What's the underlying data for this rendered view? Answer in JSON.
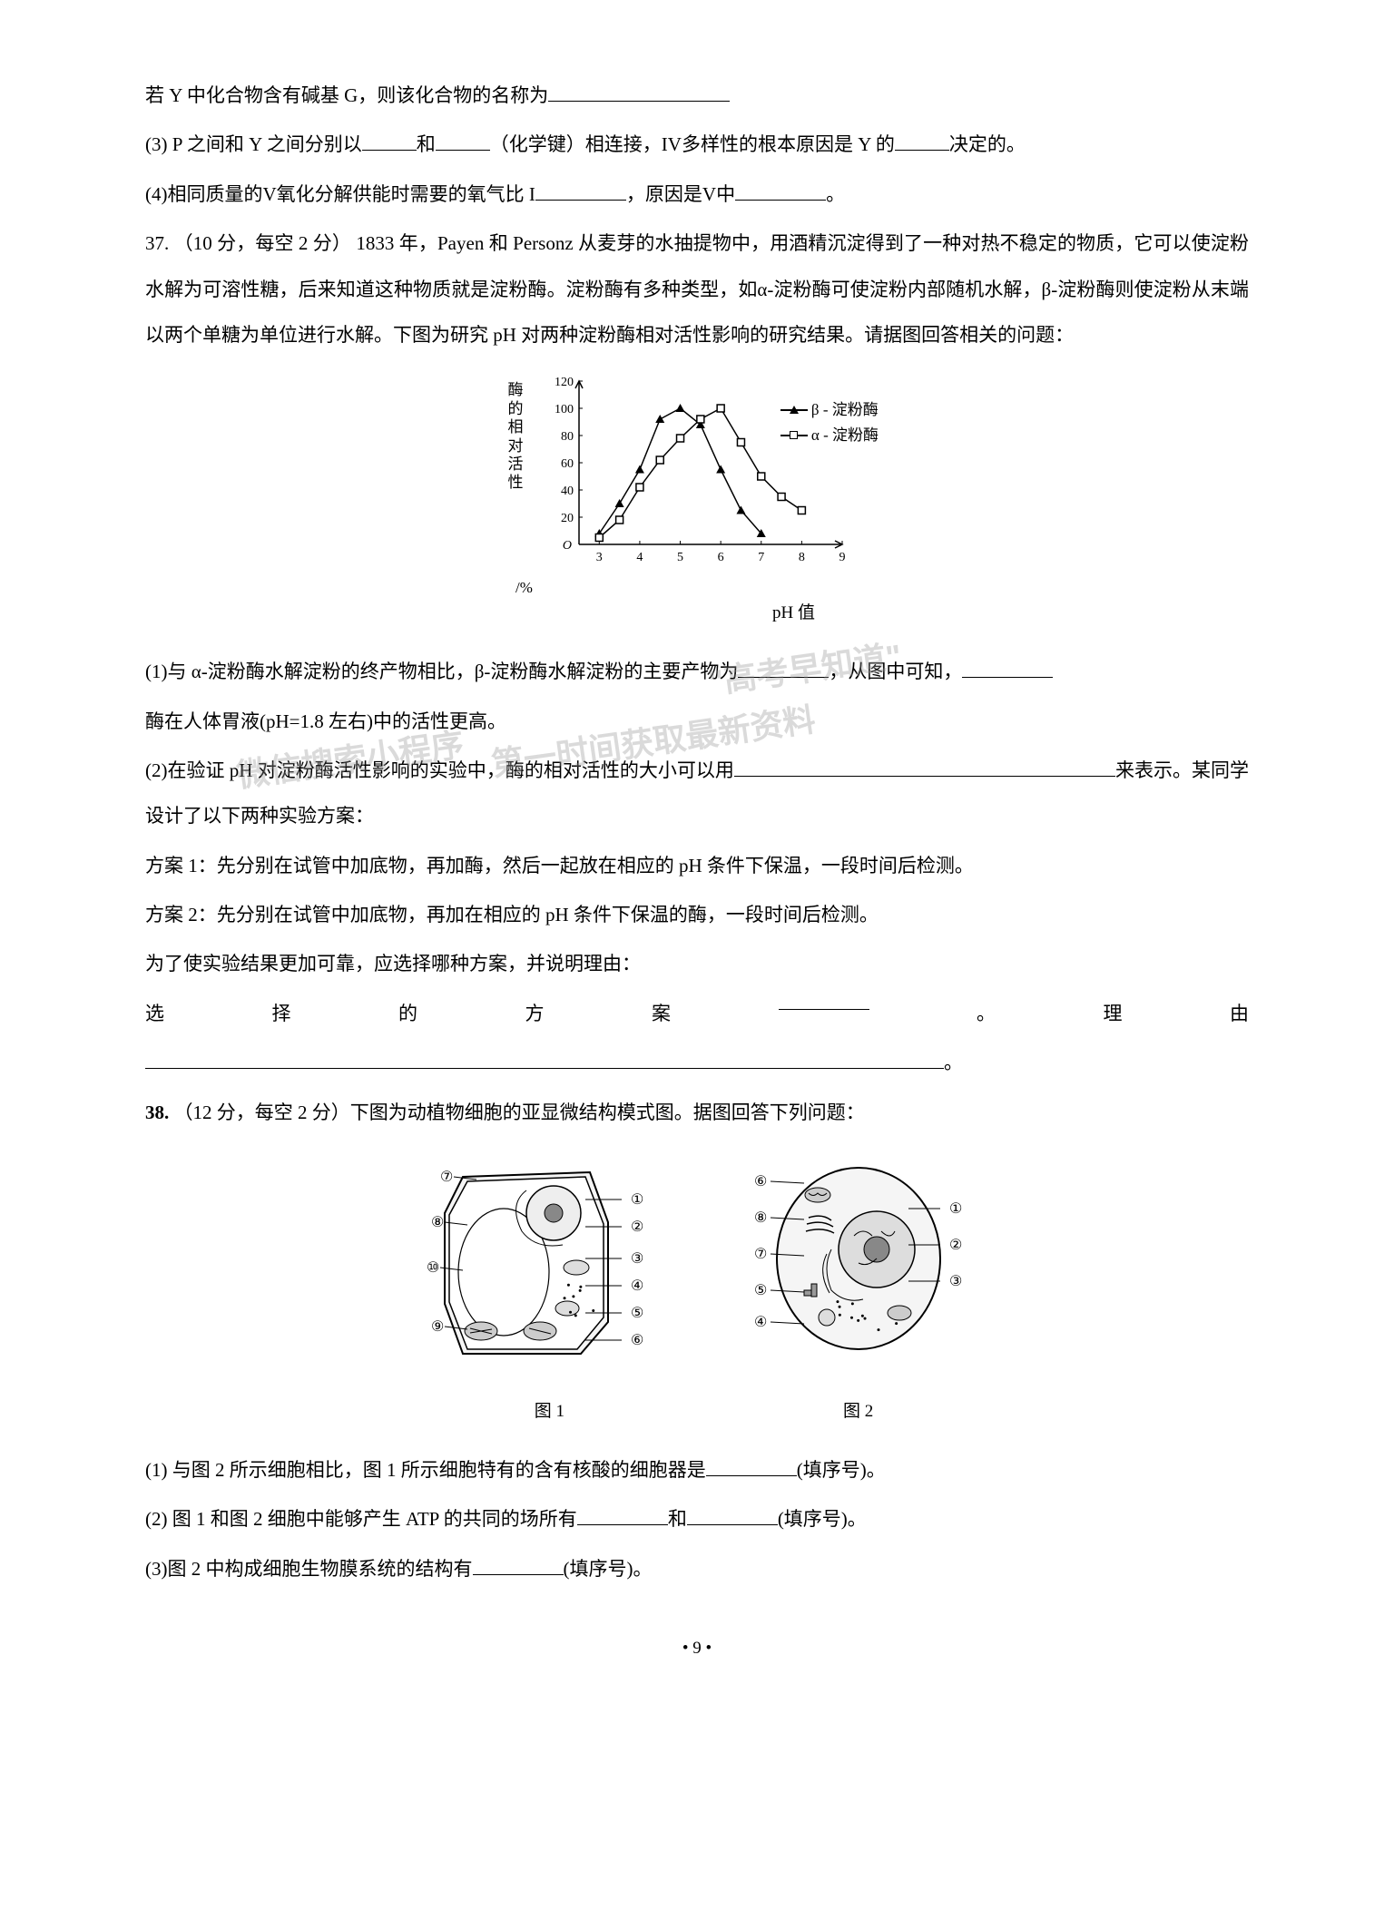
{
  "q36": {
    "line1": "若 Y 中化合物含有碱基 G，则该化合物的名称为",
    "line2a": "(3) P 之间和 Y 之间分别以",
    "line2b": "和",
    "line2c": "（化学键）相连接，IV多样性的根本原因是 Y 的",
    "line2d": "决定的。",
    "line3a": "(4)相同质量的V氧化分解供能时需要的氧气比 I",
    "line3b": "，原因是V中",
    "line3c": "。"
  },
  "q37": {
    "header": "37.   （10 分，每空 2 分）  1833 年，Payen 和 Personz 从麦芽的水抽提物中，用酒精沉淀得到了一种对热不稳定的物质，它可以使淀粉水解为可溶性糖，后来知道这种物质就是淀粉酶。淀粉酶有多种类型，如α-淀粉酶可使淀粉内部随机水解，β-淀粉酶则使淀粉从末端以两个单糖为单位进行水解。下图为研究 pH 对两种淀粉酶相对活性影响的研究结果。请据图回答相关的问题：",
    "chart": {
      "type": "line",
      "ylabel": "酶的相对活性",
      "ylabel_unit": "/%",
      "xlabel": "pH 值",
      "x_ticks": [
        3,
        4,
        5,
        6,
        7,
        8,
        9
      ],
      "y_ticks": [
        0,
        20,
        40,
        60,
        80,
        100,
        120
      ],
      "ylim": [
        0,
        120
      ],
      "xlim": [
        2.5,
        9
      ],
      "series": [
        {
          "name": "β - 淀粉酶",
          "marker": "triangle",
          "color": "#000000",
          "data": [
            [
              3,
              8
            ],
            [
              3.5,
              30
            ],
            [
              4,
              55
            ],
            [
              4.5,
              92
            ],
            [
              5,
              100
            ],
            [
              5.5,
              88
            ],
            [
              6,
              55
            ],
            [
              6.5,
              25
            ],
            [
              7,
              8
            ]
          ]
        },
        {
          "name": "α - 淀粉酶",
          "marker": "square",
          "color": "#000000",
          "data": [
            [
              3,
              5
            ],
            [
              3.5,
              18
            ],
            [
              4,
              42
            ],
            [
              4.5,
              62
            ],
            [
              5,
              78
            ],
            [
              5.5,
              92
            ],
            [
              6,
              100
            ],
            [
              6.5,
              75
            ],
            [
              7,
              50
            ],
            [
              7.5,
              35
            ],
            [
              8,
              25
            ]
          ]
        }
      ],
      "title_fontsize": 17,
      "label_fontsize": 17,
      "line_width": 1.5,
      "marker_size": 6,
      "background_color": "#ffffff"
    },
    "q1a": "(1)与 α-淀粉酶水解淀粉的终产物相比，β-淀粉酶水解淀粉的主要产物为",
    "q1b": "，从图中可知，",
    "q1c": "酶在人体胃液(pH=1.8 左右)中的活性更高。",
    "q2a": "(2)在验证 pH 对淀粉酶活性影响的实验中，酶的相对活性的大小可以用",
    "q2b": "来表示。某同学设计了以下两种实验方案：",
    "plan1": "方案 1：先分别在试管中加底物，再加酶，然后一起放在相应的 pH 条件下保温，一段时间后检测。",
    "plan2": "方案 2：先分别在试管中加底物，再加在相应的 pH 条件下保温的酶，一段时间后检测。",
    "ask": "为了使实验结果更加可靠，应选择哪种方案，并说明理由：",
    "choice_label_1": "选",
    "choice_label_2": "择",
    "choice_label_3": "的",
    "choice_label_4": "方",
    "choice_label_5": "案",
    "choice_label_6": "。",
    "choice_label_7": "理",
    "choice_label_8": "由",
    "end_period": "。"
  },
  "q38": {
    "header_num": "38.",
    "header": "（12 分，每空 2 分）下图为动植物细胞的亚显微结构模式图。据图回答下列问题：",
    "fig1_caption": "图 1",
    "fig2_caption": "图 2",
    "fig1_labels": [
      "⑦",
      "⑧",
      "⑩",
      "⑨",
      "①",
      "②",
      "③",
      "④",
      "⑤",
      "⑥"
    ],
    "fig2_labels": [
      "⑥",
      "⑧",
      "⑦",
      "⑤",
      "④",
      "①",
      "②",
      "③"
    ],
    "q1a": "(1)  与图 2 所示细胞相比，图 1 所示细胞特有的含有核酸的细胞器是",
    "q1b": "(填序号)。",
    "q2a": "(2)  图 1 和图 2 细胞中能够产生 ATP 的共同的场所有",
    "q2b": "和",
    "q2c": "(填序号)。",
    "q3a": "(3)图 2 中构成细胞生物膜系统的结构有",
    "q3b": "(填序号)。"
  },
  "watermarks": {
    "w1": "微信搜索小程序",
    "w2": "\"高考早知道\"",
    "w3": "第一时间获取最新资料"
  },
  "page_number": "• 9 •"
}
